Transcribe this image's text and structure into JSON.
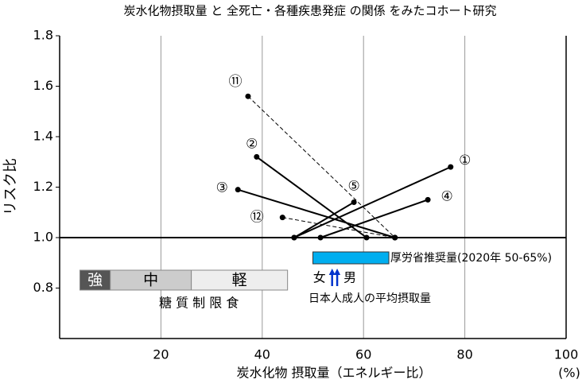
{
  "chart_data": {
    "type": "line",
    "title": "炭水化物摂取量 と 全死亡・各種疾患発症 の関係 をみたコホート研究",
    "xlabel": "炭水化物 摂取量（エネルギー比）",
    "xunit": "(%)",
    "ylabel": "リスク比",
    "xlim": [
      0,
      100
    ],
    "xticks": [
      20,
      40,
      60,
      80,
      100
    ],
    "ylim": [
      0.6,
      1.8
    ],
    "yticks": [
      0.8,
      {
        "value": 1.0,
        "label": "1.0"
      },
      1.2,
      1.4,
      1.6,
      1.8
    ],
    "grid": true,
    "reference_line": 1.0,
    "series": [
      {
        "name": "①",
        "x": [
          46.3,
          77.2
        ],
        "values": [
          1.0,
          1.28
        ],
        "dashed": false,
        "color": "#000000"
      },
      {
        "name": "②",
        "x": [
          38.9,
          60.6
        ],
        "values": [
          1.32,
          1.0
        ],
        "dashed": false,
        "color": "#000000"
      },
      {
        "name": "③",
        "x": [
          35.2,
          66.2
        ],
        "values": [
          1.19,
          1.0
        ],
        "dashed": false,
        "color": "#000000"
      },
      {
        "name": "④",
        "x": [
          51.5,
          72.7
        ],
        "values": [
          1.0,
          1.15
        ],
        "dashed": false,
        "color": "#000000"
      },
      {
        "name": "⑤",
        "x": [
          46.3,
          58.1
        ],
        "values": [
          1.0,
          1.14
        ],
        "dashed": false,
        "color": "#000000"
      },
      {
        "name": "⑪",
        "x": [
          37.2,
          66.2
        ],
        "values": [
          1.56,
          1.0
        ],
        "dashed": true,
        "color": "#000000"
      },
      {
        "name": "⑫",
        "x": [
          44.0,
          66.2
        ],
        "values": [
          1.08,
          1.0
        ],
        "dashed": true,
        "color": "#000000"
      }
    ],
    "recommended": {
      "label": "厚労省推奨量(2020年 50-65%)",
      "range": [
        50,
        65
      ],
      "color": "#00aeef"
    },
    "average_intake": {
      "label": "日本人成人の平均摂取量",
      "female_label": "女",
      "male_label": "男",
      "female": 53.8,
      "male": 54.8,
      "color": "#0033cc"
    },
    "restriction": {
      "label": "糖 質 制 限 食",
      "levels": [
        {
          "name": "強",
          "range": [
            4,
            10
          ],
          "color": "#555555",
          "text_color": "#ffffff"
        },
        {
          "name": "中",
          "range": [
            10,
            26
          ],
          "color": "#cccccc",
          "text_color": "#000000"
        },
        {
          "name": "軽",
          "range": [
            26,
            45
          ],
          "color": "#eeeeee",
          "text_color": "#000000"
        }
      ]
    }
  }
}
